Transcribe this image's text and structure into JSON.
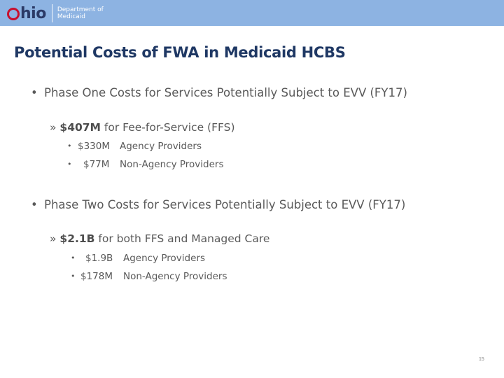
{
  "header": {
    "logo_text": "hio",
    "dept_line1": "Department of",
    "dept_line2": "Medicaid",
    "colors": {
      "banner": "#8db3e2",
      "logo_red": "#c8102e",
      "logo_navy": "#2b3a67"
    }
  },
  "slide": {
    "title": "Potential Costs of FWA in Medicaid HCBS",
    "phase_one": {
      "bullet": "•",
      "heading": "Phase One Costs for Services Potentially Subject to EVV (FY17)",
      "sub_marker": "»",
      "sub_bold": "$407M",
      "sub_text": " for Fee-for-Service (FFS)",
      "items": [
        {
          "marker": "•",
          "amount": "$330M",
          "label": "Agency Providers"
        },
        {
          "marker": "•",
          "amount": "$77M",
          "label": "Non-Agency Providers"
        }
      ]
    },
    "phase_two": {
      "bullet": "•",
      "heading": "Phase Two Costs for Services Potentially Subject to EVV (FY17)",
      "sub_marker": "»",
      "sub_bold": "$2.1B",
      "sub_text": " for both FFS and Managed Care",
      "items": [
        {
          "marker": "•",
          "amount": "$1.9B",
          "label": "Agency Providers"
        },
        {
          "marker": "•",
          "amount": "$178M",
          "label": "Non-Agency Providers"
        }
      ]
    },
    "page_number": "15"
  }
}
